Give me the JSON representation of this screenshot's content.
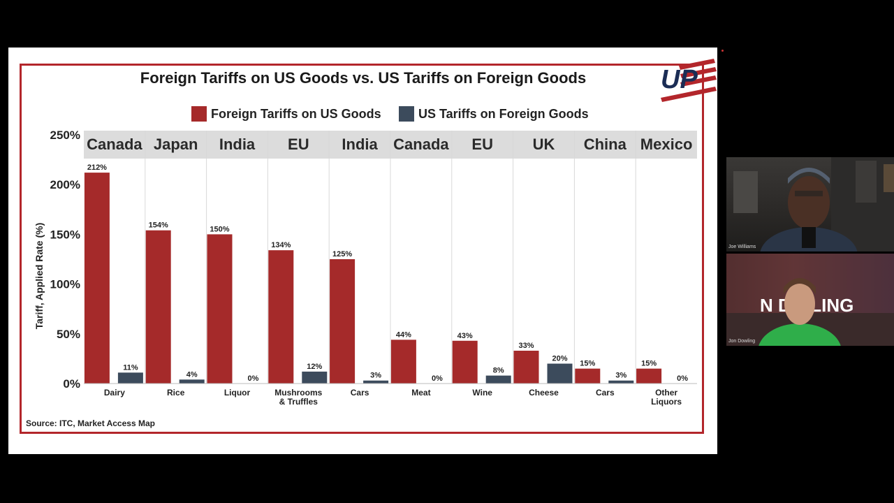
{
  "chart_data": {
    "type": "bar",
    "title": "Foreign Tariffs on US Goods vs. US Tariffs on Foreign Goods",
    "ylabel": "Tariff, Applied Rate (%)",
    "ylim": [
      0,
      250
    ],
    "yticks": [
      "0%",
      "50%",
      "100%",
      "150%",
      "200%",
      "250%"
    ],
    "ytick_values": [
      0,
      50,
      100,
      150,
      200,
      250
    ],
    "legend_position": "top",
    "grid": false,
    "groups": [
      "Canada",
      "Japan",
      "India",
      "EU",
      "India",
      "Canada",
      "EU",
      "UK",
      "China",
      "Mexico"
    ],
    "categories": [
      "Dairy",
      "Rice",
      "Liquor",
      "Mushrooms & Truffles",
      "Cars",
      "Meat",
      "Wine",
      "Cheese",
      "Cars",
      "Other Liquors"
    ],
    "series": [
      {
        "name": "Foreign Tariffs on US Goods",
        "color": "#a52a2a",
        "values": [
          212,
          154,
          150,
          134,
          125,
          44,
          43,
          33,
          15,
          15
        ],
        "labels": [
          "212%",
          "154%",
          "150%",
          "134%",
          "125%",
          "44%",
          "43%",
          "33%",
          "15%",
          "15%"
        ]
      },
      {
        "name": "US Tariffs on Foreign Goods",
        "color": "#3c4b5c",
        "values": [
          11,
          4,
          0,
          12,
          3,
          0,
          8,
          20,
          3,
          0
        ],
        "labels": [
          "11%",
          "4%",
          "0%",
          "12%",
          "3%",
          "0%",
          "8%",
          "20%",
          "3%",
          "0%"
        ]
      }
    ]
  },
  "source": "Source: ITC, Market Access Map",
  "logo_text": "UP",
  "participants": [
    {
      "name": "Joe Williams"
    },
    {
      "name": "Jon Dowling",
      "backdrop_text": "N DO LING"
    }
  ],
  "colors": {
    "frame": "#b3262b",
    "header_band": "#dcdcdc",
    "background": "#000000"
  }
}
